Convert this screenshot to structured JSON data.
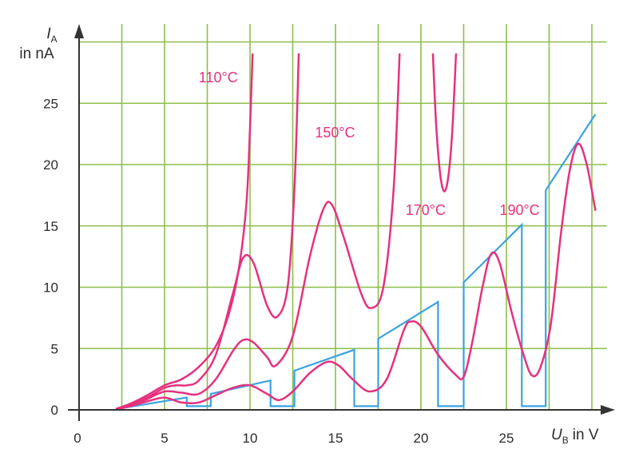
{
  "colors": {
    "grid": "#8dbf4a",
    "axis": "#333333",
    "temperature_curves": "#e6317e",
    "step_curve": "#3aa3e0"
  },
  "chart_data": {
    "type": "line",
    "ylabel": {
      "symbol": "I",
      "subscript": "A",
      "unit": "in nA"
    },
    "xlabel": {
      "symbol": "U",
      "subscript": "B",
      "unit": "in V"
    },
    "xlim": [
      0,
      31.5
    ],
    "ylim": [
      0,
      31
    ],
    "x_ticks": [
      "0",
      "5",
      "10",
      "15",
      "20",
      "25"
    ],
    "y_ticks": [
      "0",
      "5",
      "10",
      "15",
      "20",
      "25"
    ],
    "grid": true,
    "series": [
      {
        "name": "110°C",
        "color": "#e6317e",
        "points": [
          [
            2.2,
            0.1
          ],
          [
            3,
            0.5
          ],
          [
            4,
            1.2
          ],
          [
            5,
            2.0
          ],
          [
            6,
            2.5
          ],
          [
            7,
            3.5
          ],
          [
            8,
            5.2
          ],
          [
            8.8,
            8.0
          ],
          [
            9.4,
            12.0
          ],
          [
            9.8,
            17.0
          ],
          [
            10,
            23.0
          ],
          [
            10.15,
            29.0
          ]
        ]
      },
      {
        "name": "150°C",
        "color": "#e6317e",
        "points": [
          [
            2.2,
            0.1
          ],
          [
            3,
            0.4
          ],
          [
            4,
            1.0
          ],
          [
            5,
            1.8
          ],
          [
            5.7,
            2.0
          ],
          [
            6.3,
            2.0
          ],
          [
            7,
            2.4
          ],
          [
            8,
            4.5
          ],
          [
            9,
            9.5
          ],
          [
            9.6,
            12.4
          ],
          [
            10.2,
            12.0
          ],
          [
            11,
            8.5
          ],
          [
            11.6,
            7.6
          ],
          [
            12.2,
            10.0
          ],
          [
            12.6,
            18.0
          ],
          [
            12.85,
            29.0
          ]
        ]
      },
      {
        "name": "170°C",
        "color": "#e6317e",
        "points": [
          [
            2.2,
            0.1
          ],
          [
            3,
            0.35
          ],
          [
            4,
            0.9
          ],
          [
            5,
            1.5
          ],
          [
            6,
            1.4
          ],
          [
            7,
            1.3
          ],
          [
            8,
            2.5
          ],
          [
            9,
            4.8
          ],
          [
            9.6,
            5.7
          ],
          [
            10.2,
            5.5
          ],
          [
            11,
            4.3
          ],
          [
            11.5,
            3.6
          ],
          [
            12.5,
            6.0
          ],
          [
            13.5,
            12.5
          ],
          [
            14.3,
            16.4
          ],
          [
            14.8,
            16.7
          ],
          [
            15.5,
            14.0
          ],
          [
            16.5,
            9.5
          ],
          [
            17.1,
            8.3
          ],
          [
            17.8,
            10.0
          ],
          [
            18.4,
            18.0
          ],
          [
            18.75,
            29.0
          ]
        ]
      },
      {
        "name": "170°C",
        "color": "#e6317e",
        "points": [
          [
            20.7,
            29.0
          ],
          [
            20.9,
            23.0
          ],
          [
            21.2,
            18.5
          ],
          [
            21.5,
            18.2
          ],
          [
            21.8,
            22.0
          ],
          [
            22.05,
            29.0
          ]
        ]
      },
      {
        "name": "190°C",
        "color": "#e6317e",
        "points": [
          [
            2.2,
            0.05
          ],
          [
            3,
            0.3
          ],
          [
            4,
            0.7
          ],
          [
            5,
            1.0
          ],
          [
            6,
            0.6
          ],
          [
            7,
            0.6
          ],
          [
            8,
            1.2
          ],
          [
            9,
            1.8
          ],
          [
            10,
            2.0
          ],
          [
            11,
            1.3
          ],
          [
            11.7,
            0.8
          ],
          [
            12.5,
            1.5
          ],
          [
            13.5,
            3.0
          ],
          [
            14.5,
            3.9
          ],
          [
            15.2,
            3.6
          ],
          [
            16,
            2.5
          ],
          [
            17,
            1.5
          ],
          [
            18,
            2.5
          ],
          [
            19,
            6.5
          ],
          [
            19.4,
            7.2
          ],
          [
            20,
            6.8
          ],
          [
            21,
            4.5
          ],
          [
            22,
            2.9
          ],
          [
            22.5,
            2.7
          ],
          [
            23,
            5.5
          ],
          [
            23.6,
            10.0
          ],
          [
            24.1,
            12.7
          ],
          [
            24.6,
            12.0
          ],
          [
            25.3,
            8.0
          ],
          [
            26,
            4.5
          ],
          [
            26.5,
            2.8
          ],
          [
            27,
            3.5
          ],
          [
            27.6,
            7.0
          ],
          [
            28.2,
            14.5
          ],
          [
            28.7,
            19.5
          ],
          [
            29.2,
            21.7
          ],
          [
            29.7,
            20.0
          ],
          [
            30.2,
            16.3
          ]
        ]
      }
    ],
    "step_series": {
      "color": "#3aa3e0",
      "points": [
        [
          2.3,
          0.1
        ],
        [
          6.3,
          1.0
        ],
        [
          6.3,
          0.3
        ],
        [
          7.7,
          0.3
        ],
        [
          7.7,
          1.3
        ],
        [
          11.2,
          2.4
        ],
        [
          11.2,
          0.3
        ],
        [
          12.6,
          0.3
        ],
        [
          12.6,
          3.2
        ],
        [
          16.1,
          4.9
        ],
        [
          16.1,
          0.3
        ],
        [
          17.5,
          0.3
        ],
        [
          17.5,
          5.8
        ],
        [
          21,
          8.8
        ],
        [
          21,
          0.3
        ],
        [
          22.5,
          0.3
        ],
        [
          22.5,
          10.4
        ],
        [
          25.9,
          15.1
        ],
        [
          25.9,
          0.3
        ],
        [
          27.3,
          0.3
        ],
        [
          27.3,
          17.9
        ],
        [
          30.2,
          24.1
        ]
      ]
    },
    "annotations": [
      {
        "text": "110°C",
        "x": 7.0,
        "y": 26.7
      },
      {
        "text": "150°C",
        "x": 13.8,
        "y": 22.2
      },
      {
        "text": "170°C",
        "x": 19.1,
        "y": 15.9
      },
      {
        "text": "190°C",
        "x": 24.6,
        "y": 15.9
      }
    ]
  }
}
